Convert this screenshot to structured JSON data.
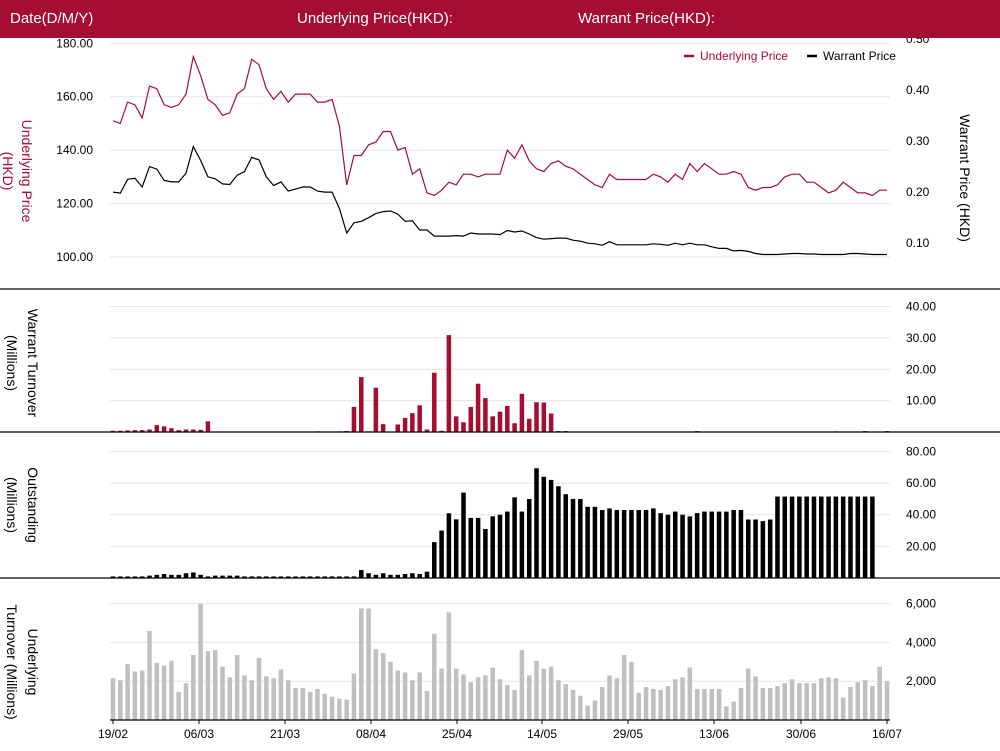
{
  "header": {
    "date_label": "Date(D/M/Y)",
    "underlying_label": "Underlying Price(HKD):",
    "warrant_label": "Warrant Price(HKD):"
  },
  "colors": {
    "header_bg": "#a50d33",
    "underlying": "#a50d33",
    "warrant": "#000000",
    "underlying_turnover": "#c0c0c0"
  },
  "x_tick_labels": [
    "19/02",
    "06/03",
    "21/03",
    "08/04",
    "25/04",
    "14/05",
    "29/05",
    "13/06",
    "30/06",
    "16/07"
  ],
  "chart_data": [
    {
      "type": "line",
      "legend_position": "top-right",
      "y_left": {
        "label": "Underlying Price (HKD)",
        "range": [
          88,
          182
        ],
        "ticks": [
          "100.00",
          "120.00",
          "140.00",
          "160.00",
          "180.00"
        ]
      },
      "y_right": {
        "label": "Warrant  Price (HKD)",
        "range": [
          0.0105,
          0.5015
        ],
        "ticks": [
          "0.10",
          "0.20",
          "0.30",
          "0.40",
          "0.50"
        ]
      },
      "series": [
        {
          "name": "Underlying Price",
          "axis": "left",
          "values": [
            151,
            150,
            158,
            157,
            152,
            164,
            163,
            157,
            156,
            157,
            161,
            175,
            168,
            159,
            157,
            153,
            154,
            161,
            163,
            174,
            172,
            163,
            159,
            162,
            158,
            161,
            161,
            161,
            158,
            158,
            159,
            149,
            127,
            138,
            138,
            142,
            143,
            147,
            147,
            140,
            141,
            131,
            133,
            124,
            123,
            125,
            128,
            127,
            131,
            131,
            130,
            131,
            131,
            131,
            140,
            137,
            142,
            136,
            133,
            132,
            135,
            136,
            134,
            133,
            131,
            129,
            127,
            126,
            131,
            129,
            129,
            129,
            129,
            129,
            131,
            130,
            128,
            131,
            129,
            135,
            132,
            135,
            133,
            131,
            131,
            132,
            131,
            126,
            125,
            126,
            126,
            127,
            130,
            131,
            131,
            128,
            128,
            126,
            124,
            125,
            128,
            126,
            124,
            124,
            123,
            125,
            125
          ]
        },
        {
          "name": "Warrant Price",
          "axis": "right",
          "values": [
            0.2,
            0.198,
            0.225,
            0.227,
            0.21,
            0.25,
            0.245,
            0.223,
            0.22,
            0.22,
            0.237,
            0.289,
            0.262,
            0.23,
            0.226,
            0.216,
            0.215,
            0.233,
            0.24,
            0.268,
            0.263,
            0.23,
            0.213,
            0.22,
            0.202,
            0.206,
            0.21,
            0.21,
            0.202,
            0.2,
            0.2,
            0.168,
            0.12,
            0.14,
            0.143,
            0.15,
            0.158,
            0.162,
            0.163,
            0.157,
            0.143,
            0.144,
            0.126,
            0.126,
            0.114,
            0.114,
            0.114,
            0.115,
            0.114,
            0.12,
            0.118,
            0.118,
            0.118,
            0.117,
            0.125,
            0.122,
            0.124,
            0.118,
            0.111,
            0.108,
            0.109,
            0.11,
            0.11,
            0.106,
            0.104,
            0.1,
            0.099,
            0.096,
            0.103,
            0.097,
            0.097,
            0.097,
            0.097,
            0.097,
            0.099,
            0.098,
            0.096,
            0.1,
            0.097,
            0.1,
            0.097,
            0.097,
            0.093,
            0.09,
            0.09,
            0.085,
            0.086,
            0.084,
            0.08,
            0.078,
            0.078,
            0.078,
            0.079,
            0.08,
            0.08,
            0.079,
            0.079,
            0.078,
            0.078,
            0.078,
            0.078,
            0.08,
            0.08,
            0.079,
            0.078,
            0.078,
            0.078
          ]
        }
      ]
    },
    {
      "type": "bar",
      "y_label": "Warrant  Turnover (Millions)",
      "range": [
        0,
        44
      ],
      "ticks": [
        "10.00",
        "20.00",
        "30.00",
        "40.00"
      ],
      "values": [
        0.4,
        0.4,
        0.5,
        0.6,
        0.6,
        0.8,
        2.2,
        1.8,
        1.2,
        0.6,
        0.8,
        0.8,
        0.7,
        3.4,
        0.1,
        0.1,
        0.1,
        0.1,
        0.1,
        0.1,
        0.1,
        0.1,
        0.1,
        0.1,
        0.1,
        0.1,
        0.1,
        0.1,
        0.2,
        0.1,
        0.1,
        0.2,
        0.3,
        8.0,
        17.5,
        0.2,
        14.1,
        2.5,
        0.1,
        2.4,
        4.5,
        6.0,
        8.5,
        0.8,
        18.9,
        0.4,
        30.9,
        5.0,
        3.1,
        8.0,
        15.4,
        10.8,
        5.0,
        6.5,
        8.3,
        2.8,
        12.2,
        4.2,
        9.5,
        9.4,
        5.9,
        0.3,
        0.3,
        0.1,
        0.1,
        0.1,
        0.1,
        0.1,
        0.1,
        0.1,
        0.1,
        0.1,
        0.1,
        0.1,
        0.1,
        0.1,
        0.1,
        0.1,
        0.1,
        0.1,
        0.3,
        0.1,
        0.1,
        0.1,
        0.1,
        0.1,
        0.1,
        0.1,
        0.1,
        0.1,
        0.1,
        0.1,
        0.1,
        0.1,
        0.1,
        0.1,
        0.1,
        0.1,
        0.1,
        0.2,
        0.1,
        0.1,
        0.1,
        0.3,
        0.1,
        0.1,
        0.3,
        0.1
      ]
    },
    {
      "type": "bar",
      "y_label": "Outstanding (Millions)",
      "range": [
        0,
        86
      ],
      "ticks": [
        "20.00",
        "40.00",
        "60.00",
        "80.00"
      ],
      "values": [
        1,
        1,
        1,
        1,
        1,
        1.5,
        2,
        2.5,
        2,
        2,
        3,
        3.5,
        2,
        1,
        1.5,
        1.5,
        1.5,
        1.5,
        1,
        1,
        1,
        1,
        1,
        1,
        1,
        1,
        1,
        1,
        1,
        1,
        1,
        1,
        1,
        1,
        5,
        3,
        2,
        3,
        2,
        2,
        2.5,
        3,
        2.5,
        4,
        22.7,
        30,
        40.9,
        37.1,
        54,
        38,
        38,
        31,
        39,
        40,
        42,
        51,
        42,
        50,
        69.4,
        64,
        62,
        58,
        53,
        50,
        50,
        45,
        45,
        43,
        44,
        43,
        43,
        43,
        43,
        43,
        44,
        41,
        40,
        42,
        40,
        39,
        41,
        42,
        42,
        42,
        42,
        43,
        43,
        37,
        37,
        36,
        37,
        51.5,
        51.5,
        51.5,
        51.5,
        51.5,
        51.5,
        51.5,
        51.5,
        51.5,
        51.5,
        51.5,
        51.5,
        51.5,
        51.5
      ]
    },
    {
      "type": "bar",
      "y_label": "Underlying Turnover (Millions)",
      "range": [
        0,
        6600
      ],
      "ticks": [
        "2,000",
        "4,000",
        "6,000"
      ],
      "values": [
        2150,
        2050,
        2880,
        2500,
        2550,
        4590,
        2950,
        2800,
        3050,
        1450,
        1900,
        3350,
        6000,
        3550,
        3600,
        2750,
        2200,
        3350,
        2300,
        2050,
        3200,
        2250,
        2150,
        2600,
        2050,
        1650,
        1650,
        1450,
        1600,
        1350,
        1200,
        1100,
        1050,
        2400,
        5750,
        5750,
        3650,
        3450,
        3000,
        2550,
        2450,
        2050,
        2450,
        1500,
        4450,
        2650,
        5550,
        2650,
        2350,
        1950,
        2200,
        2300,
        2700,
        2100,
        1800,
        1550,
        3600,
        2300,
        3050,
        2650,
        2750,
        2050,
        1850,
        1550,
        1250,
        750,
        1000,
        1700,
        2300,
        2150,
        3350,
        3000,
        1400,
        1700,
        1600,
        1550,
        1750,
        2100,
        2200,
        2700,
        1600,
        1600,
        1600,
        1600,
        700,
        950,
        1650,
        2650,
        2250,
        1650,
        1650,
        1750,
        1900,
        2100,
        1900,
        1900,
        1900,
        2150,
        2200,
        2150,
        1150,
        1700,
        1950,
        2050,
        1750,
        2750,
        2000
      ]
    }
  ]
}
